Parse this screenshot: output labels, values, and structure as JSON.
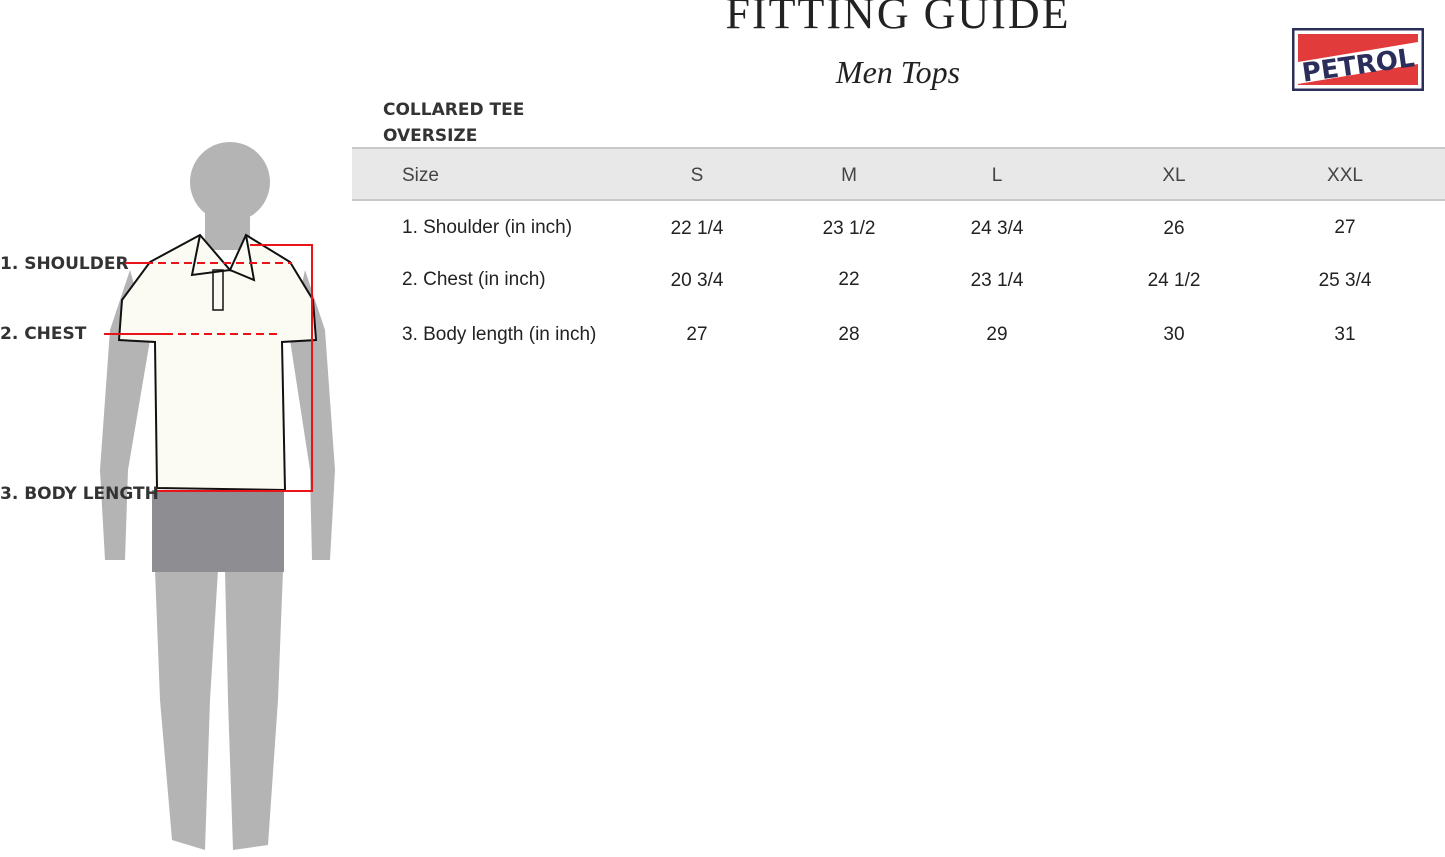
{
  "header": {
    "title": "FITTING GUIDE",
    "subtitle": "Men Tops"
  },
  "brand": {
    "logo_text": "PETROL",
    "colors": {
      "navy": "#2b2d5a",
      "red": "#e23b3b"
    }
  },
  "product": {
    "line1": "COLLARED TEE",
    "line2": "OVERSIZE"
  },
  "figure": {
    "labels": [
      "1. SHOULDER",
      "2. CHEST",
      "3. BODY LENGTH"
    ],
    "marker_color": "#e8141a"
  },
  "table": {
    "header_label": "Size",
    "sizes": [
      "S",
      "M",
      "L",
      "XL",
      "XXL"
    ],
    "rows": [
      {
        "label": "1. Shoulder (in inch)",
        "values": [
          "22 1/4",
          "23 1/2",
          "24 3/4",
          "26",
          "27"
        ]
      },
      {
        "label": "2. Chest (in inch)",
        "values": [
          "20 3/4",
          "22",
          "23 1/4",
          "24 1/2",
          "25 3/4"
        ]
      },
      {
        "label": "3. Body length (in inch)",
        "values": [
          "27",
          "28",
          "29",
          "30",
          "31"
        ]
      }
    ]
  }
}
